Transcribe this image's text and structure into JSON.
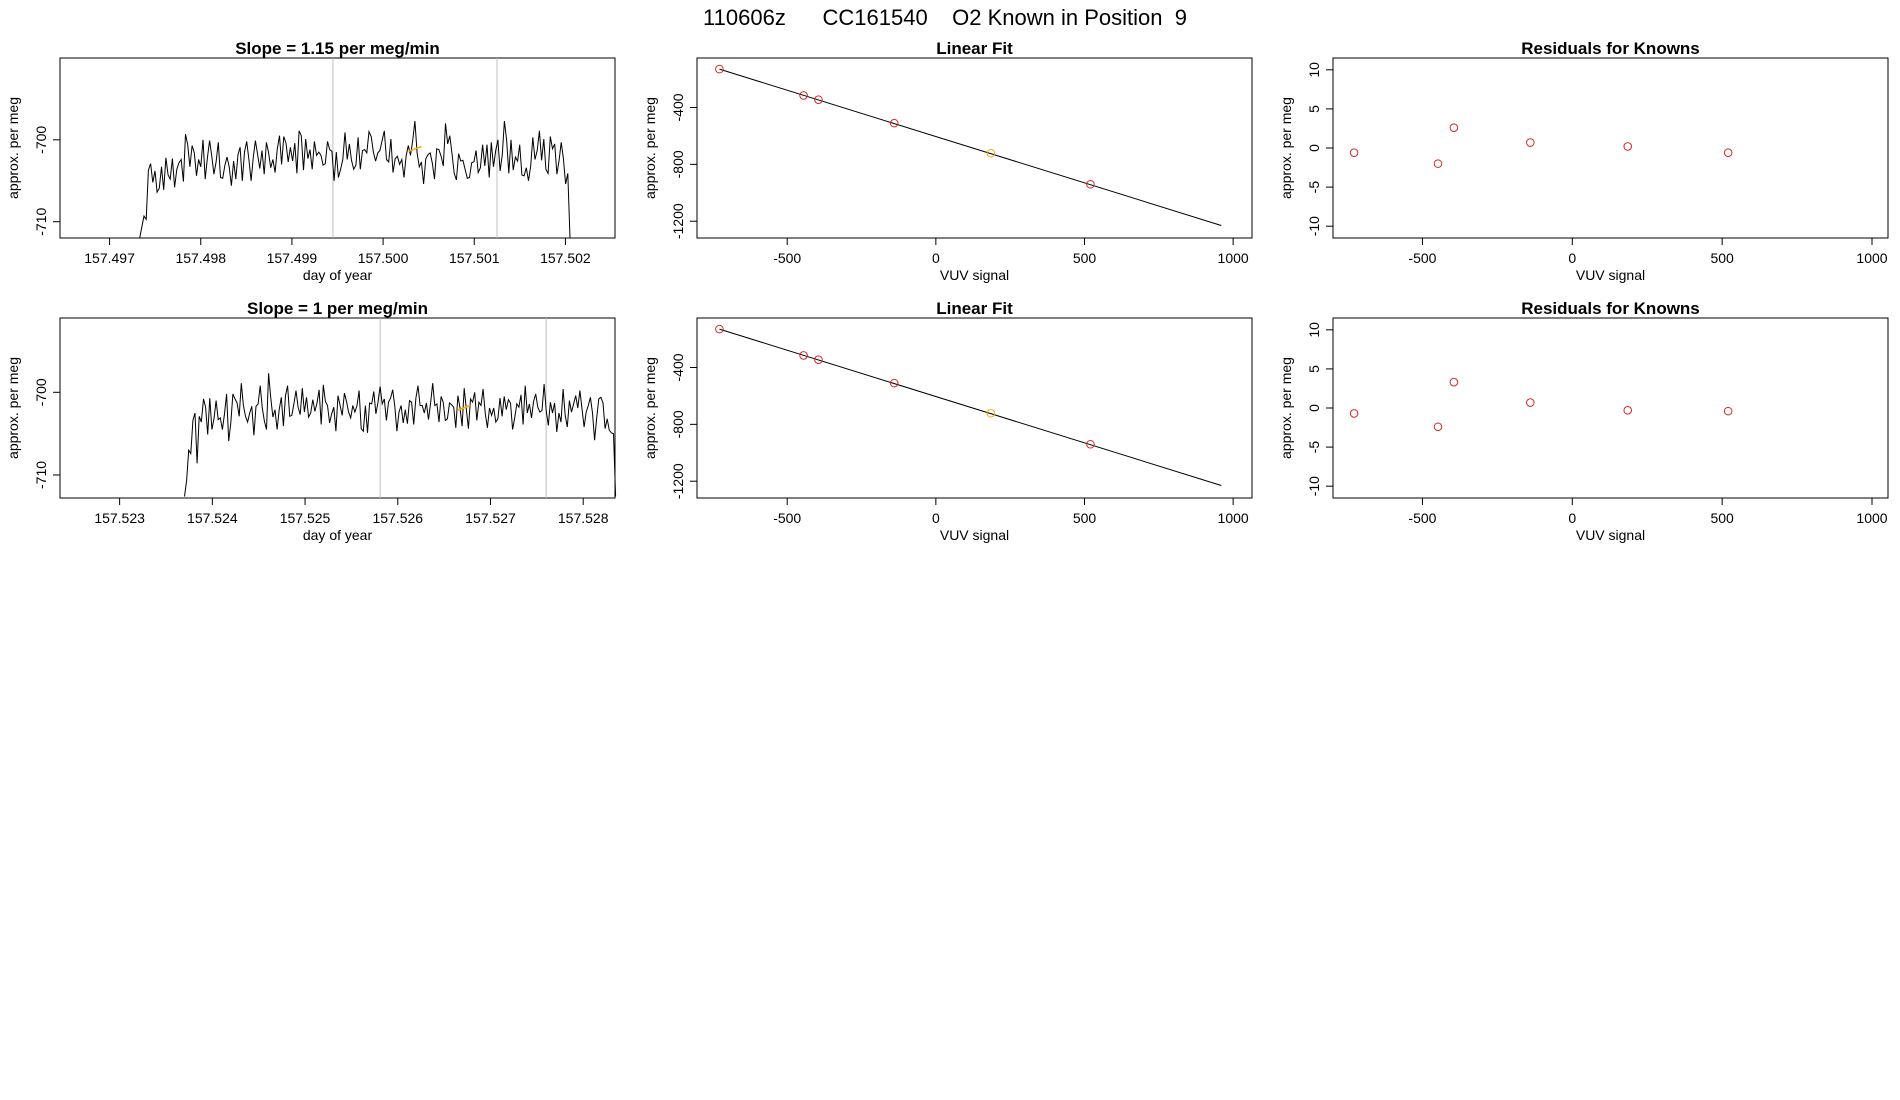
{
  "page_title": "110606z      CC161540    O2 Known in Position  9",
  "colors": {
    "line": "#000000",
    "known": "#d62728",
    "highlight": "#ffa500",
    "vline": "#c0c0c0"
  },
  "chart_data": [
    {
      "type": "line",
      "title": "Slope =  1.15  per meg/min",
      "xlabel": "day of year",
      "ylabel": "approx. per meg",
      "xlim": [
        157.4965,
        157.5025
      ],
      "ylim": [
        -711.5,
        -690.5
      ],
      "xticks": [
        "157.497",
        "157.498",
        "157.499",
        "157.500",
        "157.501",
        "157.502"
      ],
      "yticks": [
        "-700",
        "-710"
      ],
      "x_start": 157.49733,
      "x_end": 157.50205,
      "vlines": [
        157.49945,
        157.50125
      ],
      "highlight_x": [
        157.50028,
        157.50042
      ],
      "highlight_y": [
        -701.4,
        -700.8
      ],
      "values": [
        -712.5,
        -710.6,
        -709.3,
        -709.7,
        -703.7,
        -702.9,
        -705.2,
        -703.8,
        -706.4,
        -705.9,
        -703.3,
        -706.1,
        -702.2,
        -704.3,
        -704.8,
        -702.3,
        -705.8,
        -703.6,
        -702.8,
        -702.4,
        -705.1,
        -699.3,
        -700.6,
        -703.3,
        -700.7,
        -701.6,
        -704.4,
        -702.4,
        -703.3,
        -700.0,
        -704.8,
        -702.2,
        -700.1,
        -702.0,
        -704.2,
        -702.7,
        -700.3,
        -704.6,
        -704.7,
        -703.1,
        -702.1,
        -703.3,
        -705.6,
        -702.6,
        -704.8,
        -701.8,
        -700.9,
        -705.0,
        -701.5,
        -700.2,
        -702.4,
        -705.0,
        -702.1,
        -700.1,
        -701.8,
        -703.5,
        -701.3,
        -704.2,
        -700.3,
        -701.5,
        -703.4,
        -702.4,
        -704.0,
        -701.1,
        -699.5,
        -703.0,
        -699.6,
        -700.4,
        -702.7,
        -700.9,
        -702.6,
        -700.4,
        -704.1,
        -698.9,
        -699.5,
        -703.7,
        -699.9,
        -702.3,
        -701.2,
        -703.6,
        -700.2,
        -701.9,
        -701.5,
        -701.9,
        -703.1,
        -702.9,
        -700.2,
        -701.2,
        -701.4,
        -705.0,
        -701.5,
        -704.6,
        -703.6,
        -702.4,
        -699.1,
        -702.4,
        -700.5,
        -702.5,
        -703.6,
        -703.1,
        -699.7,
        -703.6,
        -701.3,
        -701.2,
        -701.6,
        -699.0,
        -699.6,
        -701.5,
        -702.6,
        -701.6,
        -701.3,
        -700.1,
        -698.9,
        -702.4,
        -702.7,
        -699.9,
        -704.0,
        -702.3,
        -702.0,
        -703.0,
        -702.4,
        -704.6,
        -701.9,
        -700.7,
        -701.9,
        -700.1,
        -697.7,
        -701.6,
        -703.3,
        -702.7,
        -705.4,
        -702.3,
        -701.8,
        -701.6,
        -702.9,
        -704.8,
        -701.1,
        -701.2,
        -702.0,
        -703.2,
        -698.0,
        -700.5,
        -699.5,
        -701.7,
        -704.1,
        -704.9,
        -701.7,
        -702.6,
        -702.5,
        -703.6,
        -704.7,
        -704.6,
        -702.8,
        -702.7,
        -701.3,
        -704.0,
        -703.4,
        -700.6,
        -703.2,
        -700.6,
        -704.6,
        -700.3,
        -703.3,
        -701.3,
        -700.0,
        -703.8,
        -701.8,
        -697.7,
        -700.0,
        -704.1,
        -700.0,
        -703.7,
        -702.1,
        -702.6,
        -700.6,
        -704.3,
        -704.4,
        -703.4,
        -705.0,
        -703.2,
        -699.7,
        -702.4,
        -701.3,
        -698.9,
        -702.5,
        -699.9,
        -703.6,
        -704.1,
        -699.6,
        -701.1,
        -700.5,
        -704.2,
        -702.5,
        -700.3,
        -702.3,
        -705.4,
        -704.1,
        -712.1
      ]
    },
    {
      "type": "scatter",
      "title": "Linear Fit",
      "xlabel": "VUV signal",
      "ylabel": "approx. per meg",
      "xlim": [
        -790,
        1050
      ],
      "ylim": [
        -1290,
        -80
      ],
      "xticks": [
        "-500",
        "0",
        "500",
        "1000"
      ],
      "yticks": [
        "-400",
        "-800",
        "-1200"
      ],
      "fit_line": {
        "x": [
          -728,
          960
        ],
        "y": [
          -130,
          -1230
        ]
      },
      "points_x": [
        -728,
        -445,
        -395,
        -140,
        185,
        520
      ],
      "points_y": [
        -130,
        -315,
        -345,
        -510,
        -722,
        -940
      ],
      "highlight_index": 4
    },
    {
      "type": "scatter",
      "title": "Residuals for Knowns",
      "xlabel": "VUV signal",
      "ylabel": "approx. per meg",
      "xlim": [
        -785,
        1040
      ],
      "ylim": [
        -11,
        11
      ],
      "xticks": [
        "-500",
        "0",
        "500",
        "1000"
      ],
      "yticks": [
        "10",
        "5",
        "0",
        "-5",
        "-10"
      ],
      "points_x": [
        -728,
        -448,
        -395,
        -140,
        185,
        520
      ],
      "points_y": [
        -0.6,
        -2.0,
        2.6,
        0.7,
        0.2,
        -0.6
      ]
    },
    {
      "type": "line",
      "title": "Slope =  1  per meg/min",
      "xlabel": "day of year",
      "ylabel": "approx. per meg",
      "xlim": [
        157.5224,
        157.5283
      ],
      "ylim": [
        -712.3,
        -691.5
      ],
      "xticks": [
        "157.523",
        "157.524",
        "157.525",
        "157.526",
        "157.527",
        "157.528"
      ],
      "yticks": [
        "-700",
        "-710"
      ],
      "x_start": 157.5237,
      "x_end": 157.52835,
      "vlines": [
        157.52581,
        157.5276
      ],
      "highlight_x": [
        157.52664,
        157.52678
      ],
      "highlight_y": [
        -702.2,
        -701.6
      ],
      "values": [
        -712.6,
        -710.7,
        -707.0,
        -707.4,
        -703.4,
        -702.5,
        -708.6,
        -702.9,
        -703.6,
        -700.8,
        -701.8,
        -705.1,
        -700.7,
        -704.5,
        -703.2,
        -701.0,
        -703.3,
        -703.1,
        -704.5,
        -702.6,
        -700.2,
        -705.9,
        -703.7,
        -700.2,
        -700.8,
        -701.3,
        -702.9,
        -698.9,
        -701.6,
        -702.9,
        -703.6,
        -702.5,
        -701.7,
        -705.2,
        -701.7,
        -701.4,
        -699.2,
        -701.9,
        -703.5,
        -704.5,
        -697.7,
        -700.6,
        -703.0,
        -702.1,
        -704.5,
        -702.1,
        -700.6,
        -704.1,
        -700.4,
        -699.2,
        -702.9,
        -702.8,
        -701.4,
        -699.8,
        -701.8,
        -702.7,
        -699.5,
        -702.4,
        -700.6,
        -703.0,
        -702.5,
        -700.9,
        -702.3,
        -701.3,
        -699.7,
        -703.9,
        -699.1,
        -701.1,
        -701.6,
        -703.7,
        -702.6,
        -701.8,
        -704.7,
        -700.4,
        -701.6,
        -702.8,
        -700.1,
        -701.1,
        -702.4,
        -703.1,
        -701.6,
        -702.4,
        -701.6,
        -699.8,
        -704.4,
        -704.7,
        -701.6,
        -704.9,
        -701.3,
        -701.4,
        -699.9,
        -702.6,
        -701.2,
        -699.3,
        -701.4,
        -700.8,
        -703.4,
        -701.2,
        -700.7,
        -699.7,
        -701.7,
        -704.7,
        -702.4,
        -701.6,
        -703.7,
        -702.1,
        -703.8,
        -701.0,
        -701.2,
        -703.9,
        -700.7,
        -699.2,
        -701.6,
        -701.6,
        -702.5,
        -701.3,
        -703.3,
        -701.3,
        -698.9,
        -701.6,
        -701.4,
        -703.6,
        -700.5,
        -701.2,
        -703.4,
        -703.2,
        -701.3,
        -701.5,
        -701.8,
        -704.3,
        -700.4,
        -701.9,
        -704.1,
        -699.5,
        -702.0,
        -704.4,
        -700.8,
        -701.2,
        -700.0,
        -703.4,
        -701.2,
        -701.6,
        -699.6,
        -702.6,
        -704.3,
        -701.9,
        -702.8,
        -701.9,
        -703.6,
        -703.2,
        -700.7,
        -702.9,
        -700.5,
        -702.1,
        -700.9,
        -701.3,
        -704.5,
        -703.1,
        -701.4,
        -701.8,
        -700.3,
        -703.9,
        -699.2,
        -702.5,
        -701.4,
        -703.1,
        -701.1,
        -700.2,
        -701.8,
        -702.4,
        -702.2,
        -699.0,
        -702.2,
        -704.0,
        -701.2,
        -702.5,
        -701.3,
        -704.8,
        -702.5,
        -703.6,
        -699.6,
        -702.8,
        -704.2,
        -701.0,
        -702.4,
        -701.4,
        -700.4,
        -701.9,
        -699.8,
        -702.0,
        -704.2,
        -702.4,
        -701.6,
        -700.6,
        -702.5,
        -705.8,
        -703.1,
        -700.8,
        -700.6,
        -701.3,
        -704.4,
        -703.2,
        -704.6,
        -704.9,
        -705.0,
        -712.6
      ]
    },
    {
      "type": "scatter",
      "title": "Linear Fit",
      "xlabel": "VUV signal",
      "ylabel": "approx. per meg",
      "xlim": [
        -790,
        1050
      ],
      "ylim": [
        -1290,
        -80
      ],
      "xticks": [
        "-500",
        "0",
        "500",
        "1000"
      ],
      "yticks": [
        "-400",
        "-800",
        "-1200"
      ],
      "fit_line": {
        "x": [
          -728,
          960
        ],
        "y": [
          -130,
          -1230
        ]
      },
      "points_x": [
        -728,
        -445,
        -395,
        -140,
        185,
        520
      ],
      "points_y": [
        -130,
        -315,
        -345,
        -510,
        -722,
        -940
      ],
      "highlight_index": 4
    },
    {
      "type": "scatter",
      "title": "Residuals for Knowns",
      "xlabel": "VUV signal",
      "ylabel": "approx. per meg",
      "xlim": [
        -785,
        1040
      ],
      "ylim": [
        -11,
        11
      ],
      "xticks": [
        "-500",
        "0",
        "500",
        "1000"
      ],
      "yticks": [
        "10",
        "5",
        "0",
        "-5",
        "-10"
      ],
      "points_x": [
        -728,
        -448,
        -395,
        -140,
        185,
        520
      ],
      "points_y": [
        -0.7,
        -2.4,
        3.3,
        0.7,
        -0.3,
        -0.4
      ]
    }
  ]
}
